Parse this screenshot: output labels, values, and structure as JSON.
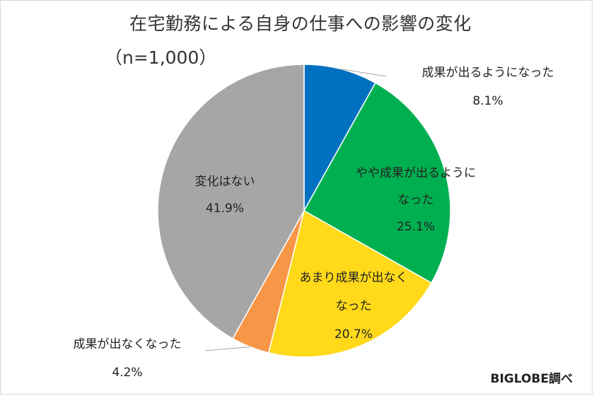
{
  "title": "在宅勤務による自身の仕事への影響の変化",
  "subtitle": "（n=1,000）",
  "source": "BIGLOBE調べ",
  "chart_data": {
    "type": "pie",
    "title": "在宅勤務による自身の仕事への影響の変化",
    "subtitle": "（n=1,000）",
    "slices": [
      {
        "label": "成果が出るようになった",
        "value": 8.1,
        "value_label": "8.1%",
        "color": "#0070c0"
      },
      {
        "label": "やや成果が出るようになった",
        "value": 25.1,
        "value_label": "25.1%",
        "color": "#00b050"
      },
      {
        "label": "あまり成果が出なくなった",
        "value": 20.7,
        "value_label": "20.7%",
        "color": "#ffd91a"
      },
      {
        "label": "成果が出なくなった",
        "value": 4.2,
        "value_label": "4.2%",
        "color": "#f79646"
      },
      {
        "label": "変化はない",
        "value": 41.9,
        "value_label": "41.9%",
        "color": "#a6a6a6"
      }
    ],
    "label_lines": [
      [
        "成果が出るようになった"
      ],
      [
        "やや成果が出るように",
        "なった"
      ],
      [
        "あまり成果が出なく",
        "なった"
      ],
      [
        "成果が出なくなった"
      ],
      [
        "変化はない"
      ]
    ],
    "start_angle": "12 o'clock",
    "direction": "clockwise",
    "legend": "none"
  }
}
